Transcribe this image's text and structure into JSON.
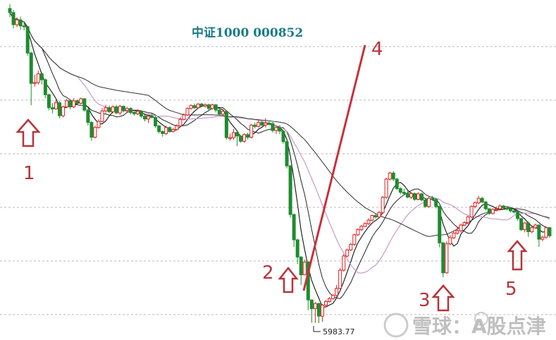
{
  "chart_data": {
    "type": "candlestick",
    "title": "中证1000 000852",
    "low_label": "5983.77",
    "watermark": "雪球：A股点津",
    "colors": {
      "up": "#e02020",
      "down": "#1e8c2e",
      "trend": "#c8303a",
      "arrow": "#b8323a",
      "grid": "#b8b8b8",
      "ma_short": "#111111",
      "ma_mid": "#222222",
      "ma_pink": "#c79ac9",
      "ma_long": "#333333"
    },
    "annotations": [
      "1",
      "2",
      "3",
      "4",
      "5"
    ],
    "grid": "horizontal-dashed",
    "x_range": [
      0,
      153
    ],
    "y_range": [
      5900,
      7580
    ],
    "bars": [
      [
        0,
        7538,
        7518,
        7560,
        7495
      ],
      [
        1,
        7518,
        7458,
        7530,
        7440
      ],
      [
        2,
        7458,
        7482,
        7495,
        7445
      ],
      [
        3,
        7482,
        7452,
        7498,
        7432
      ],
      [
        4,
        7452,
        7448,
        7468,
        7430
      ],
      [
        5,
        7448,
        7318,
        7452,
        7305
      ],
      [
        6,
        7318,
        7168,
        7325,
        7060
      ],
      [
        7,
        7168,
        7172,
        7210,
        7152
      ],
      [
        8,
        7172,
        7215,
        7232,
        7162
      ],
      [
        9,
        7215,
        7186,
        7222,
        7162
      ],
      [
        10,
        7186,
        7112,
        7192,
        7095
      ],
      [
        11,
        7112,
        7048,
        7118,
        7035
      ],
      [
        12,
        7048,
        7042,
        7070,
        7020
      ],
      [
        13,
        7042,
        7072,
        7086,
        7038
      ],
      [
        14,
        7072,
        7008,
        7080,
        6995
      ],
      [
        15,
        7008,
        7052,
        7058,
        7000
      ],
      [
        16,
        7052,
        7082,
        7092,
        7046
      ],
      [
        17,
        7082,
        7052,
        7090,
        7040
      ],
      [
        18,
        7052,
        7082,
        7095,
        7046
      ],
      [
        19,
        7082,
        7070,
        7088,
        7062
      ],
      [
        20,
        7070,
        7092,
        7098,
        7064
      ],
      [
        21,
        7092,
        7036,
        7095,
        7028
      ],
      [
        22,
        7036,
        6975,
        7042,
        6960
      ],
      [
        23,
        6975,
        6902,
        6982,
        6885
      ],
      [
        24,
        6902,
        6950,
        6960,
        6895
      ],
      [
        25,
        6950,
        6980,
        6990,
        6944
      ],
      [
        26,
        6980,
        7032,
        7046,
        6975
      ],
      [
        27,
        7032,
        7048,
        7062,
        7020
      ],
      [
        28,
        7048,
        7028,
        7058,
        7020
      ],
      [
        29,
        7028,
        7052,
        7060,
        7018
      ],
      [
        30,
        7052,
        7022,
        7062,
        7015
      ],
      [
        31,
        7022,
        7055,
        7062,
        7012
      ],
      [
        32,
        7055,
        7034,
        7058,
        7025
      ],
      [
        33,
        7034,
        7044,
        7052,
        7024
      ],
      [
        34,
        7044,
        7024,
        7050,
        7015
      ],
      [
        35,
        7024,
        7018,
        7030,
        7008
      ],
      [
        36,
        7018,
        7030,
        7040,
        7010
      ],
      [
        37,
        7030,
        7006,
        7036,
        6998
      ],
      [
        38,
        7006,
        6992,
        7012,
        6980
      ],
      [
        39,
        6992,
        7006,
        7012,
        6972
      ],
      [
        40,
        7006,
        7000,
        7018,
        6994
      ],
      [
        41,
        7000,
        6958,
        7005,
        6948
      ],
      [
        42,
        6958,
        6930,
        6962,
        6920
      ],
      [
        43,
        6930,
        6920,
        6935,
        6905
      ],
      [
        44,
        6920,
        6950,
        6958,
        6912
      ],
      [
        45,
        6950,
        6930,
        6955,
        6924
      ],
      [
        46,
        6930,
        6940,
        6948,
        6925
      ],
      [
        47,
        6940,
        6958,
        6966,
        6935
      ],
      [
        48,
        6958,
        6990,
        7000,
        6952
      ],
      [
        49,
        6990,
        7012,
        7020,
        6984
      ],
      [
        50,
        7012,
        7044,
        7050,
        7006
      ],
      [
        51,
        7044,
        7058,
        7065,
        7038
      ],
      [
        52,
        7058,
        7048,
        7068,
        7040
      ],
      [
        53,
        7048,
        7066,
        7070,
        7042
      ],
      [
        54,
        7066,
        7056,
        7072,
        7050
      ],
      [
        55,
        7056,
        7062,
        7070,
        7048
      ],
      [
        56,
        7062,
        7044,
        7068,
        7030
      ],
      [
        57,
        7044,
        7062,
        7068,
        7038
      ],
      [
        58,
        7062,
        7036,
        7066,
        7025
      ],
      [
        59,
        7036,
        7016,
        7040,
        7012
      ],
      [
        60,
        7016,
        7030,
        7036,
        7010
      ],
      [
        61,
        7030,
        6900,
        7034,
        6890
      ],
      [
        62,
        6900,
        6900,
        6920,
        6885
      ],
      [
        63,
        6900,
        6925,
        6942,
        6890
      ],
      [
        64,
        6925,
        6908,
        6930,
        6858
      ],
      [
        65,
        6908,
        6882,
        6912,
        6875
      ],
      [
        66,
        6882,
        6915,
        6922,
        6875
      ],
      [
        67,
        6915,
        6902,
        6925,
        6890
      ],
      [
        68,
        6902,
        6962,
        6968,
        6895
      ],
      [
        69,
        6962,
        6955,
        6975,
        6945
      ],
      [
        70,
        6955,
        6975,
        6990,
        6950
      ],
      [
        71,
        6975,
        6962,
        6985,
        6955
      ],
      [
        72,
        6962,
        6972,
        6996,
        6950
      ],
      [
        73,
        6972,
        6970,
        6980,
        6960
      ],
      [
        74,
        6970,
        6935,
        6976,
        6925
      ],
      [
        75,
        6935,
        6950,
        6958,
        6918
      ],
      [
        76,
        6950,
        6932,
        6962,
        6918
      ],
      [
        77,
        6932,
        6880,
        6935,
        6870
      ],
      [
        78,
        6880,
        6760,
        6885,
        6748
      ],
      [
        79,
        6760,
        6520,
        6765,
        6505
      ],
      [
        80,
        6520,
        6395,
        6525,
        6360
      ],
      [
        81,
        6395,
        6310,
        6400,
        6275
      ],
      [
        82,
        6310,
        6222,
        6315,
        6172
      ],
      [
        83,
        6222,
        6285,
        6298,
        6220
      ],
      [
        84,
        6285,
        6098,
        6290,
        6048
      ],
      [
        85,
        6098,
        6055,
        6100,
        5985
      ],
      [
        86,
        6055,
        6080,
        6088,
        5985
      ],
      [
        87,
        6080,
        6018,
        6085,
        5984
      ],
      [
        88,
        6018,
        6072,
        6078,
        5990
      ],
      [
        89,
        6072,
        6090,
        6098,
        6060
      ],
      [
        90,
        6090,
        6105,
        6112,
        6085
      ],
      [
        91,
        6105,
        6120,
        6128,
        6098
      ],
      [
        92,
        6120,
        6155,
        6172,
        6115
      ],
      [
        93,
        6155,
        6245,
        6256,
        6150
      ],
      [
        94,
        6245,
        6315,
        6325,
        6238
      ],
      [
        95,
        6315,
        6345,
        6352,
        6308
      ],
      [
        96,
        6345,
        6372,
        6380,
        6340
      ],
      [
        97,
        6372,
        6420,
        6425,
        6366
      ],
      [
        98,
        6420,
        6445,
        6452,
        6414
      ],
      [
        99,
        6445,
        6462,
        6468,
        6438
      ],
      [
        100,
        6462,
        6475,
        6482,
        6456
      ],
      [
        101,
        6475,
        6492,
        6502,
        6468
      ],
      [
        102,
        6492,
        6515,
        6520,
        6485
      ],
      [
        103,
        6515,
        6508,
        6525,
        6500
      ],
      [
        104,
        6508,
        6530,
        6538,
        6502
      ],
      [
        105,
        6530,
        6605,
        6612,
        6522
      ],
      [
        106,
        6605,
        6695,
        6702,
        6598
      ],
      [
        107,
        6695,
        6725,
        6732,
        6688
      ],
      [
        108,
        6725,
        6695,
        6735,
        6685
      ],
      [
        109,
        6695,
        6648,
        6702,
        6640
      ],
      [
        110,
        6648,
        6630,
        6655,
        6620
      ],
      [
        111,
        6630,
        6624,
        6648,
        6615
      ],
      [
        112,
        6624,
        6606,
        6638,
        6600
      ],
      [
        113,
        6606,
        6624,
        6630,
        6596
      ],
      [
        114,
        6624,
        6595,
        6628,
        6588
      ],
      [
        115,
        6595,
        6622,
        6630,
        6590
      ],
      [
        116,
        6622,
        6592,
        6628,
        6585
      ],
      [
        117,
        6592,
        6560,
        6598,
        6552
      ],
      [
        118,
        6560,
        6600,
        6608,
        6552
      ],
      [
        119,
        6600,
        6595,
        6612,
        6588
      ],
      [
        120,
        6595,
        6560,
        6600,
        6550
      ],
      [
        121,
        6560,
        6380,
        6565,
        6358
      ],
      [
        122,
        6380,
        6232,
        6385,
        6210
      ],
      [
        123,
        6232,
        6375,
        6388,
        6228
      ],
      [
        124,
        6375,
        6405,
        6420,
        6368
      ],
      [
        125,
        6405,
        6428,
        6438,
        6398
      ],
      [
        126,
        6428,
        6440,
        6462,
        6420
      ],
      [
        127,
        6440,
        6468,
        6475,
        6432
      ],
      [
        128,
        6468,
        6480,
        6488,
        6462
      ],
      [
        129,
        6480,
        6508,
        6515,
        6472
      ],
      [
        130,
        6508,
        6560,
        6565,
        6502
      ],
      [
        131,
        6560,
        6578,
        6585,
        6550
      ],
      [
        132,
        6578,
        6600,
        6612,
        6570
      ],
      [
        133,
        6600,
        6582,
        6608,
        6575
      ],
      [
        134,
        6582,
        6548,
        6588,
        6540
      ],
      [
        135,
        6548,
        6525,
        6552,
        6518
      ],
      [
        136,
        6525,
        6545,
        6552,
        6520
      ],
      [
        137,
        6545,
        6548,
        6560,
        6536
      ],
      [
        138,
        6548,
        6562,
        6570,
        6542
      ],
      [
        139,
        6562,
        6552,
        6568,
        6545
      ],
      [
        140,
        6552,
        6548,
        6560,
        6540
      ],
      [
        141,
        6548,
        6538,
        6552,
        6530
      ],
      [
        142,
        6538,
        6532,
        6545,
        6525
      ],
      [
        143,
        6532,
        6500,
        6538,
        6490
      ],
      [
        144,
        6500,
        6445,
        6505,
        6438
      ],
      [
        145,
        6445,
        6478,
        6484,
        6432
      ],
      [
        146,
        6478,
        6435,
        6486,
        6410
      ],
      [
        147,
        6435,
        6455,
        6462,
        6428
      ],
      [
        148,
        6455,
        6468,
        6475,
        6448
      ],
      [
        149,
        6468,
        6398,
        6472,
        6360
      ],
      [
        150,
        6398,
        6408,
        6415,
        6388
      ],
      [
        151,
        6408,
        6455,
        6462,
        6400
      ],
      [
        152,
        6455,
        6415,
        6460,
        6405
      ]
    ]
  }
}
